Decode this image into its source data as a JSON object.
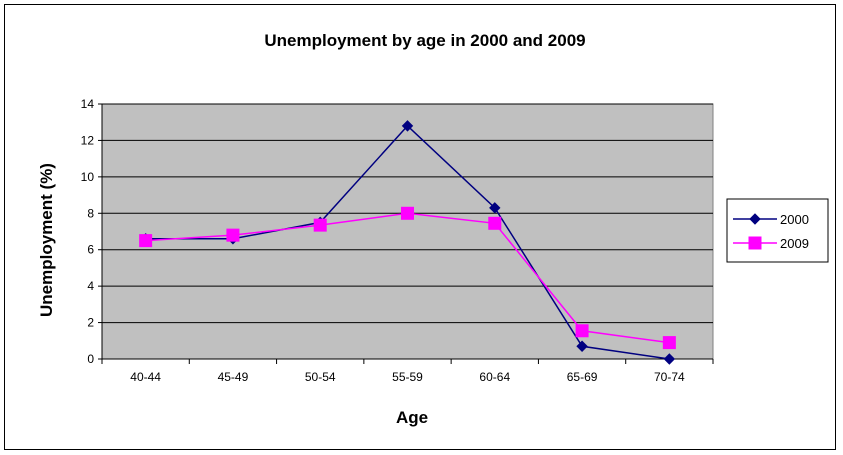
{
  "chart_data": {
    "type": "line",
    "title": "Unemployment by age in 2000 and 2009",
    "xlabel": "Age",
    "ylabel": "Unemployment (%)",
    "categories": [
      "40-44",
      "45-49",
      "50-54",
      "55-59",
      "60-64",
      "65-69",
      "70-74"
    ],
    "ylim": [
      0,
      14
    ],
    "yticks": [
      0,
      2,
      4,
      6,
      8,
      10,
      12,
      14
    ],
    "grid": true,
    "legend": "right",
    "plot_background": "#C0C0C0",
    "series": [
      {
        "name": "2000",
        "values": [
          6.6,
          6.6,
          7.5,
          12.8,
          8.3,
          0.7,
          0.0
        ],
        "color": "#000080",
        "marker": "diamond"
      },
      {
        "name": "2009",
        "values": [
          6.5,
          6.8,
          7.35,
          8.0,
          7.45,
          1.55,
          0.9
        ],
        "color": "#FF00FF",
        "marker": "square"
      }
    ]
  }
}
